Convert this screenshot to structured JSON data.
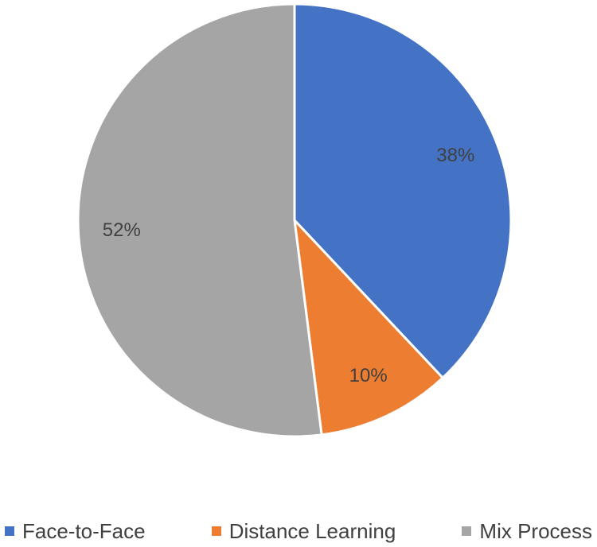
{
  "chart_data": {
    "type": "pie",
    "categories": [
      "Face-to-Face",
      "Distance Learning",
      "Mix Process"
    ],
    "values": [
      38,
      10,
      52
    ],
    "value_labels": [
      "38%",
      "10%",
      "52%"
    ],
    "colors": [
      "#4472c4",
      "#ed7d31",
      "#a5a5a5"
    ],
    "legend": "bottom"
  }
}
